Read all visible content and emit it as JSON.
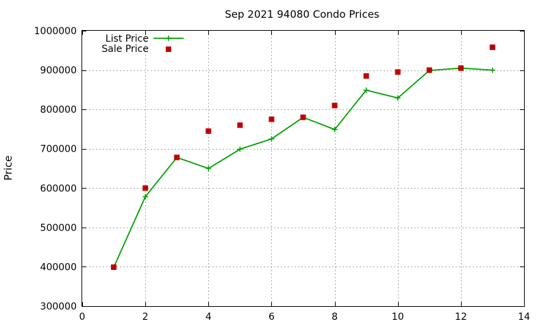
{
  "chart_data": {
    "type": "line",
    "title": "Sep 2021 94080 Condo Prices",
    "xlabel": "",
    "ylabel": "Price",
    "xlim": [
      0,
      14
    ],
    "ylim": [
      300000,
      1000000
    ],
    "xticks": [
      "0",
      "2",
      "4",
      "6",
      "8",
      "10",
      "12",
      "14"
    ],
    "yticks": [
      "300000",
      "400000",
      "500000",
      "600000",
      "700000",
      "800000",
      "900000",
      "1000000"
    ],
    "grid": true,
    "legend_position": "top-left",
    "series": [
      {
        "name": "List Price",
        "style": "line+plus",
        "color": "#00a000",
        "x": [
          1,
          2,
          3,
          4,
          5,
          6,
          7,
          8,
          9,
          10,
          11,
          12,
          13
        ],
        "y": [
          399000,
          578000,
          678000,
          650000,
          699000,
          725000,
          780000,
          749000,
          849000,
          829000,
          899000,
          905000,
          900000
        ]
      },
      {
        "name": "Sale Price",
        "style": "square-points",
        "color": "#c00000",
        "x": [
          1,
          2,
          3,
          4,
          5,
          6,
          7,
          8,
          9,
          10,
          11,
          12,
          13
        ],
        "y": [
          399000,
          600000,
          678000,
          745000,
          760000,
          775000,
          780000,
          810000,
          885000,
          895000,
          900000,
          905000,
          958000
        ]
      }
    ]
  }
}
